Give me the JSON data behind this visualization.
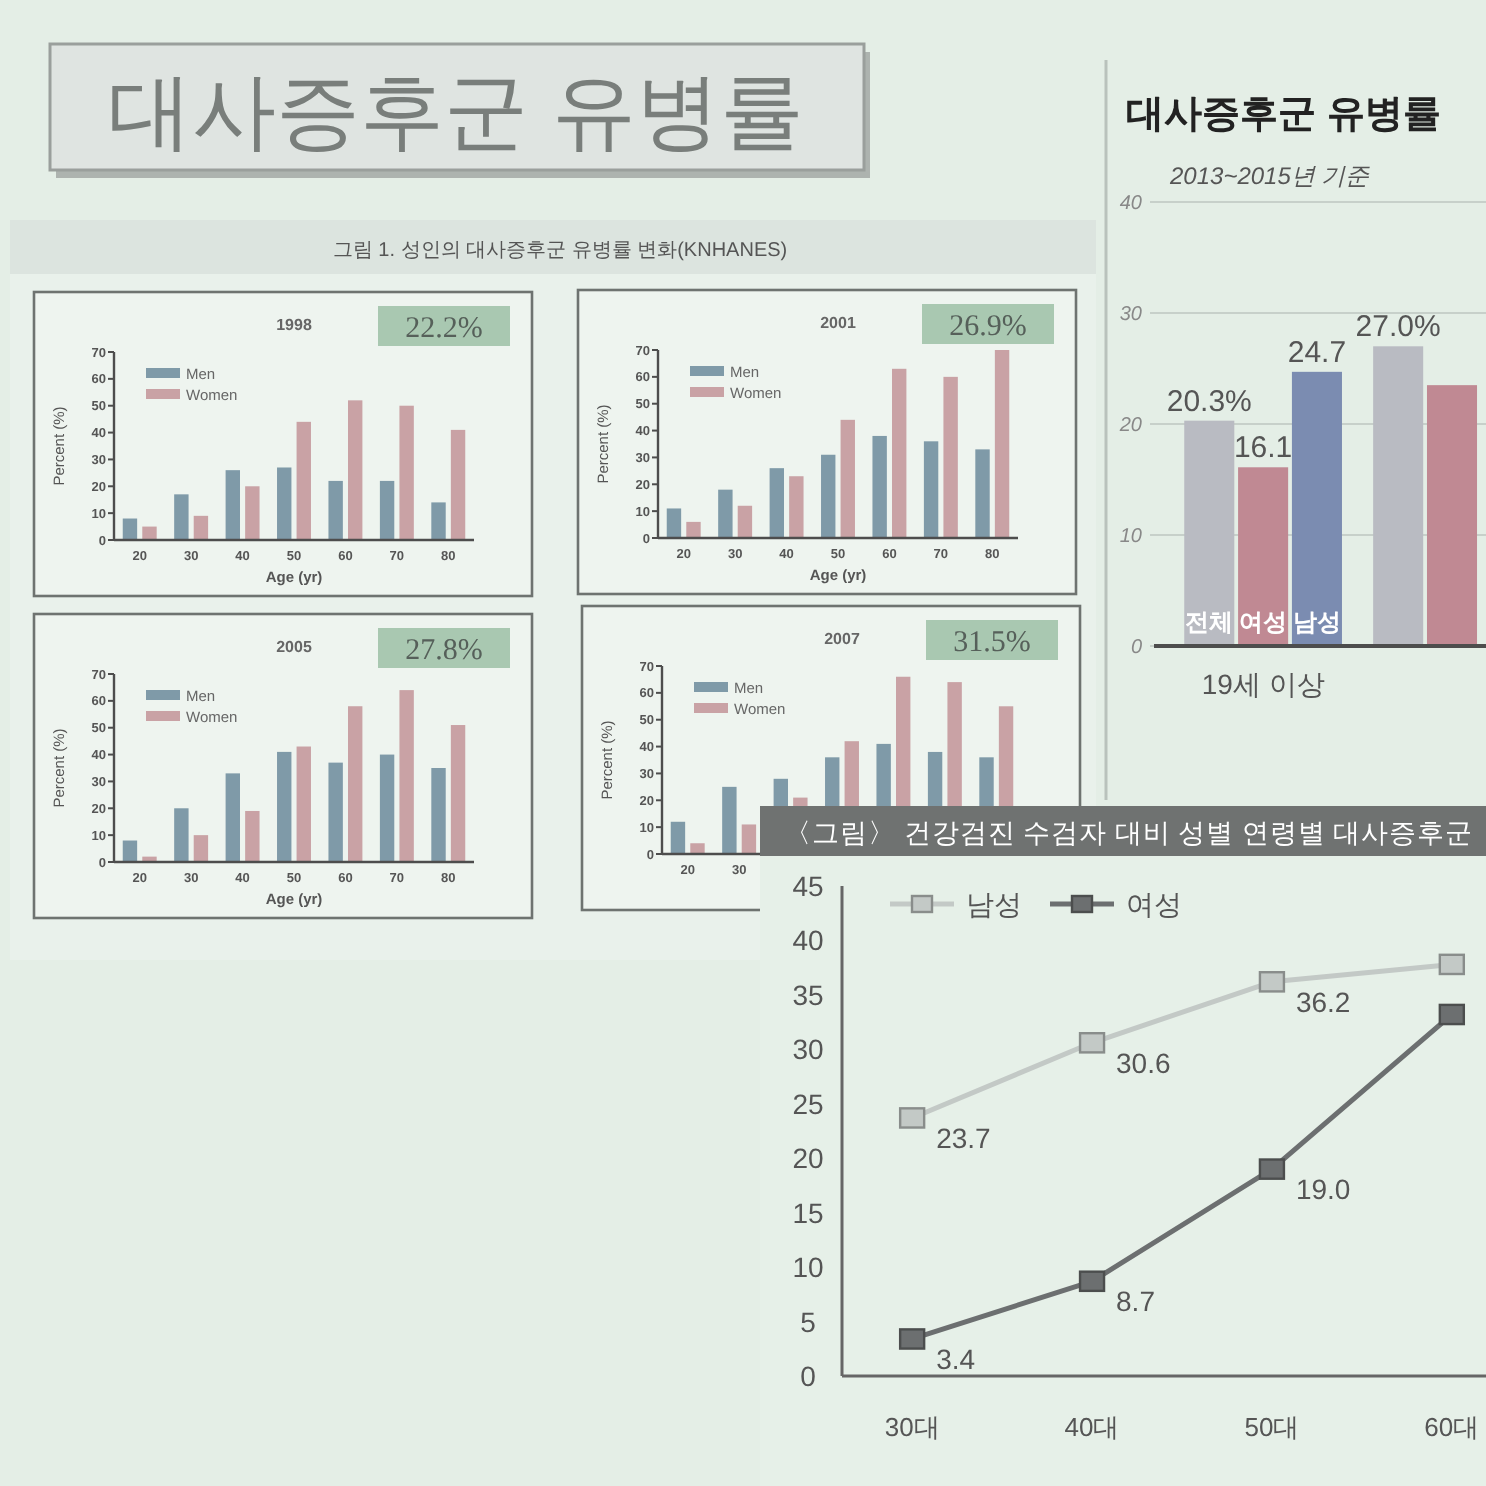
{
  "chart_data": [
    {
      "type": "other",
      "title": "대사증후군 유병률",
      "annotations": [
        "그림 1. 성인의 대사증후군 유병률 변화(KNHANES)"
      ]
    },
    {
      "type": "bar",
      "title": "1998",
      "annotations": [
        "22.2%"
      ],
      "categories": [
        "20",
        "30",
        "40",
        "50",
        "60",
        "70",
        "80"
      ],
      "series": [
        {
          "name": "Men",
          "color": "#7f9aa8",
          "values": [
            8,
            17,
            26,
            27,
            22,
            22,
            14
          ]
        },
        {
          "name": "Women",
          "color": "#c9a2a5",
          "values": [
            5,
            9,
            20,
            44,
            52,
            50,
            41
          ]
        }
      ],
      "xlabel": "Age (yr)",
      "ylabel": "Percent (%)",
      "ylim": [
        0,
        70
      ],
      "yticks": [
        0,
        10,
        20,
        30,
        40,
        50,
        60,
        70
      ],
      "legend": "top left"
    },
    {
      "type": "bar",
      "title": "2001",
      "annotations": [
        "26.9%"
      ],
      "categories": [
        "20",
        "30",
        "40",
        "50",
        "60",
        "70",
        "80"
      ],
      "series": [
        {
          "name": "Men",
          "color": "#7f9aa8",
          "values": [
            11,
            18,
            26,
            31,
            38,
            36,
            33
          ]
        },
        {
          "name": "Women",
          "color": "#c9a2a5",
          "values": [
            6,
            12,
            23,
            44,
            63,
            60,
            70
          ]
        }
      ],
      "xlabel": "Age (yr)",
      "ylabel": "Percent (%)",
      "ylim": [
        0,
        70
      ],
      "yticks": [
        0,
        10,
        20,
        30,
        40,
        50,
        60,
        70
      ],
      "legend": "top left"
    },
    {
      "type": "bar",
      "title": "2005",
      "annotations": [
        "27.8%"
      ],
      "categories": [
        "20",
        "30",
        "40",
        "50",
        "60",
        "70",
        "80"
      ],
      "series": [
        {
          "name": "Men",
          "color": "#7f9aa8",
          "values": [
            8,
            20,
            33,
            41,
            37,
            40,
            35
          ]
        },
        {
          "name": "Women",
          "color": "#c9a2a5",
          "values": [
            2,
            10,
            19,
            43,
            58,
            64,
            51
          ]
        }
      ],
      "xlabel": "Age (yr)",
      "ylabel": "Percent (%)",
      "ylim": [
        0,
        70
      ],
      "yticks": [
        0,
        10,
        20,
        30,
        40,
        50,
        60,
        70
      ],
      "legend": "top left"
    },
    {
      "type": "bar",
      "title": "2007",
      "annotations": [
        "31.5%"
      ],
      "categories": [
        "20",
        "30",
        null,
        null,
        null,
        null,
        null
      ],
      "series": [
        {
          "name": "Men",
          "color": "#7f9aa8",
          "values": [
            12,
            25,
            28,
            36,
            41,
            38,
            36
          ]
        },
        {
          "name": "Women",
          "color": "#c9a2a5",
          "values": [
            4,
            11,
            21,
            42,
            66,
            64,
            55
          ]
        }
      ],
      "ylabel": "Percent (%)",
      "ylim": [
        0,
        70
      ],
      "yticks": [
        0,
        10,
        20,
        30,
        40,
        50,
        60,
        70
      ],
      "legend": "top left"
    },
    {
      "type": "bar",
      "title": "대사증후군 유병률",
      "subtitle": "2013~2015년 기준",
      "categories": [
        "19세 이상",
        null
      ],
      "series": [
        {
          "name": "전체",
          "color": "#b9bbc2",
          "values": [
            20.3,
            27.0
          ],
          "value_labels": [
            "20.3%",
            "27.0%"
          ]
        },
        {
          "name": "여성",
          "color": "#c08993",
          "values": [
            16.1,
            23.5
          ],
          "value_labels": [
            "16.1",
            null
          ]
        },
        {
          "name": "남성",
          "color": "#7b8cb1",
          "values": [
            24.7,
            null
          ],
          "value_labels": [
            "24.7",
            null
          ]
        }
      ],
      "ylim": [
        0,
        40
      ],
      "yticks": [
        0,
        10,
        20,
        30,
        40
      ],
      "grid": "y"
    },
    {
      "type": "line",
      "title": "〈그림〉 건강검진 수검자 대비 성별 연령별 대사증후군",
      "categories": [
        "30대",
        "40대",
        "50대",
        "60대"
      ],
      "series": [
        {
          "name": "남성",
          "color": "#c3c9c6",
          "values": [
            23.7,
            30.6,
            36.2,
            37.8
          ],
          "value_labels": [
            "23.7",
            "30.6",
            "36.2",
            null
          ]
        },
        {
          "name": "여성",
          "color": "#6c6f70",
          "values": [
            3.4,
            8.7,
            19.0,
            33.2
          ],
          "value_labels": [
            "3.4",
            "8.7",
            "19.0",
            null
          ]
        }
      ],
      "ylim": [
        0,
        45
      ],
      "yticks": [
        0,
        5,
        10,
        15,
        20,
        25,
        30,
        35,
        40,
        45
      ],
      "legend": "top left",
      "marker": "square"
    }
  ]
}
